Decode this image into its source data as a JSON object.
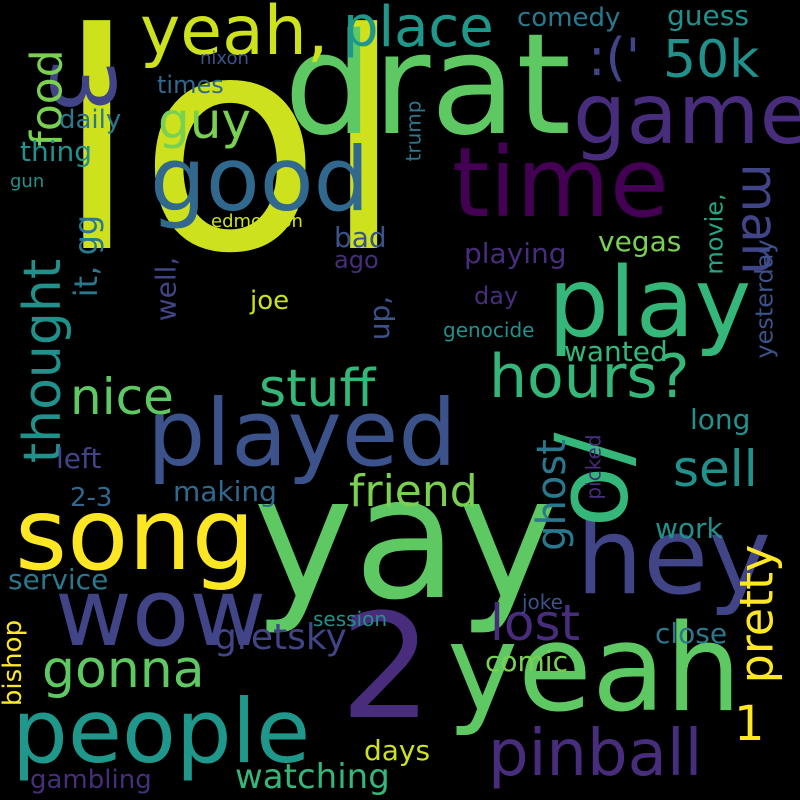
{
  "background": "#000000",
  "palette": {
    "yellow": "#cde11d",
    "bright_yellow": "#fde725",
    "light_green": "#7ad151",
    "green": "#5ec962",
    "green_mid": "#35b779",
    "teal_green": "#22a884",
    "teal": "#1f988b",
    "teal_dark": "#21918c",
    "blue_teal": "#2a788e",
    "blue": "#31688e",
    "blue_dark": "#3b528b",
    "indigo": "#414487",
    "purple": "#472d7b",
    "dark_purple": "#440154"
  },
  "words": [
    {
      "text": "lol",
      "color": "#cde11d"
    },
    {
      "text": "yay",
      "color": "#5ec962"
    },
    {
      "text": "drat",
      "color": "#5ec962"
    },
    {
      "text": "played",
      "color": "#3b528b"
    },
    {
      "text": "yeah",
      "color": "#5ec962"
    },
    {
      "text": "people",
      "color": "#1f988b"
    },
    {
      "text": "wow",
      "color": "#414487"
    },
    {
      "text": "song",
      "color": "#fde725"
    },
    {
      "text": "hey",
      "color": "#414487"
    },
    {
      "text": "good",
      "color": "#31688e"
    },
    {
      "text": "time",
      "color": "#440154"
    },
    {
      "text": "game",
      "color": "#472d7b"
    },
    {
      "text": "play",
      "color": "#35b779"
    },
    {
      "text": "2",
      "color": "#472d7b"
    },
    {
      "text": "o/",
      "color": "#35b779"
    },
    {
      "text": "yeah,",
      "color": "#cde11d"
    },
    {
      "text": "place",
      "color": "#1f988b"
    },
    {
      "text": "3",
      "color": "#414487"
    },
    {
      "text": "hours?",
      "color": "#35b779"
    },
    {
      "text": "pinball",
      "color": "#472d7b"
    },
    {
      "text": "thought",
      "color": "#21918c"
    },
    {
      "text": "stuff",
      "color": "#35b779"
    },
    {
      "text": "nice",
      "color": "#5ec962"
    },
    {
      "text": "friend",
      "color": "#7ad151"
    },
    {
      "text": "gonna",
      "color": "#5ec962"
    },
    {
      "text": "lost",
      "color": "#472d7b"
    },
    {
      "text": "pretty",
      "color": "#fde725"
    },
    {
      "text": "ghost",
      "color": "#2a788e"
    },
    {
      "text": "guy",
      "color": "#7ad151"
    },
    {
      "text": "man",
      "color": "#414487"
    },
    {
      "text": "sell",
      "color": "#21918c"
    },
    {
      "text": "50k",
      "color": "#21918c"
    },
    {
      "text": ":('",
      "color": "#414487"
    },
    {
      "text": "food",
      "color": "#7ad151"
    },
    {
      "text": "it, gg",
      "color": "#2a788e"
    },
    {
      "text": "gretsky",
      "color": "#414487"
    },
    {
      "text": "comic",
      "color": "#7ad151"
    },
    {
      "text": "watching",
      "color": "#35b779"
    },
    {
      "text": "gambling",
      "color": "#472d7b"
    },
    {
      "text": "bishop",
      "color": "#fde725"
    },
    {
      "text": "service",
      "color": "#2a788e"
    },
    {
      "text": "making",
      "color": "#31688e"
    },
    {
      "text": "2-3",
      "color": "#31688e"
    },
    {
      "text": "left",
      "color": "#414487"
    },
    {
      "text": "days",
      "color": "#cde11d"
    },
    {
      "text": "close",
      "color": "#2a788e"
    },
    {
      "text": "joke",
      "color": "#3b528b"
    },
    {
      "text": "session",
      "color": "#21918c"
    },
    {
      "text": "work",
      "color": "#21918c"
    },
    {
      "text": "picked",
      "color": "#472d7b"
    },
    {
      "text": "yesterday",
      "color": "#3b528b"
    },
    {
      "text": "movie,",
      "color": "#22a884"
    },
    {
      "text": "vegas",
      "color": "#7ad151"
    },
    {
      "text": "playing",
      "color": "#472d7b"
    },
    {
      "text": "wanted",
      "color": "#35b779"
    },
    {
      "text": "genocide",
      "color": "#21918c"
    },
    {
      "text": "long",
      "color": "#21918c"
    },
    {
      "text": "day",
      "color": "#472d7b"
    },
    {
      "text": "ago",
      "color": "#472d7b"
    },
    {
      "text": "bad",
      "color": "#3b528b"
    },
    {
      "text": "up,",
      "color": "#3b528b"
    },
    {
      "text": "well,",
      "color": "#414487"
    },
    {
      "text": "joe",
      "color": "#cde11d"
    },
    {
      "text": "edmonton",
      "color": "#cde11d"
    },
    {
      "text": "times",
      "color": "#31688e"
    },
    {
      "text": "daily",
      "color": "#2a788e"
    },
    {
      "text": "thing",
      "color": "#21918c"
    },
    {
      "text": "gun",
      "color": "#21918c"
    },
    {
      "text": "nixon",
      "color": "#3b528b"
    },
    {
      "text": "trump",
      "color": "#2a788e"
    },
    {
      "text": "comedy",
      "color": "#2a788e"
    },
    {
      "text": "guess",
      "color": "#21918c"
    },
    {
      "text": "1",
      "color": "#fde725"
    }
  ]
}
